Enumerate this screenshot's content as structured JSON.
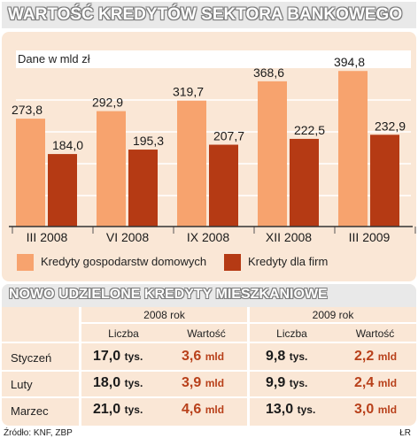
{
  "header": {
    "title": "WARTOŚĆ KREDYTÓW SEKTORA BANKOWEGO"
  },
  "chart_data": {
    "type": "bar",
    "unit_note": "Dane w mld zł",
    "categories": [
      "III 2008",
      "VI 2008",
      "IX 2008",
      "XII 2008",
      "III 2009"
    ],
    "series": [
      {
        "name": "Kredyty gospodarstw domowych",
        "color": "#f7a36e",
        "values": [
          273.8,
          292.9,
          319.7,
          368.6,
          394.8
        ]
      },
      {
        "name": "Kredyty dla firm",
        "color": "#b53a14",
        "values": [
          184.0,
          195.3,
          207.7,
          222.5,
          232.9
        ]
      }
    ],
    "value_labels": [
      [
        "273,8",
        "292,9",
        "319,7",
        "368,6",
        "394,8"
      ],
      [
        "184,0",
        "195,3",
        "207,7",
        "222,5",
        "232,9"
      ]
    ],
    "ylim": [
      0,
      420
    ],
    "legend_position": "bottom"
  },
  "table": {
    "title": "NOWO UDZIELONE KREDYTY MIESZKANIOWE",
    "groups": [
      "2008 rok",
      "2009 rok"
    ],
    "columns": [
      "Liczba",
      "Wartość",
      "Liczba",
      "Wartość"
    ],
    "rows": [
      {
        "label": "Styczeń",
        "c2008": "17,0",
        "c2008u": "tys.",
        "v2008": "3,6",
        "v2008u": "mld",
        "c2009": "9,8",
        "c2009u": "tys.",
        "v2009": "2,2",
        "v2009u": "mld"
      },
      {
        "label": "Luty",
        "c2008": "18,0",
        "c2008u": "tys.",
        "v2008": "3,9",
        "v2008u": "mld",
        "c2009": "9,9",
        "c2009u": "tys.",
        "v2009": "2,4",
        "v2009u": "mld"
      },
      {
        "label": "Marzec",
        "c2008": "21,0",
        "c2008u": "tys.",
        "v2008": "4,6",
        "v2008u": "mld",
        "c2009": "13,0",
        "c2009u": "tys.",
        "v2009": "3,0",
        "v2009u": "mld"
      }
    ]
  },
  "footer": {
    "source": "Źródło: KNF, ZBP",
    "author": "ŁR"
  }
}
